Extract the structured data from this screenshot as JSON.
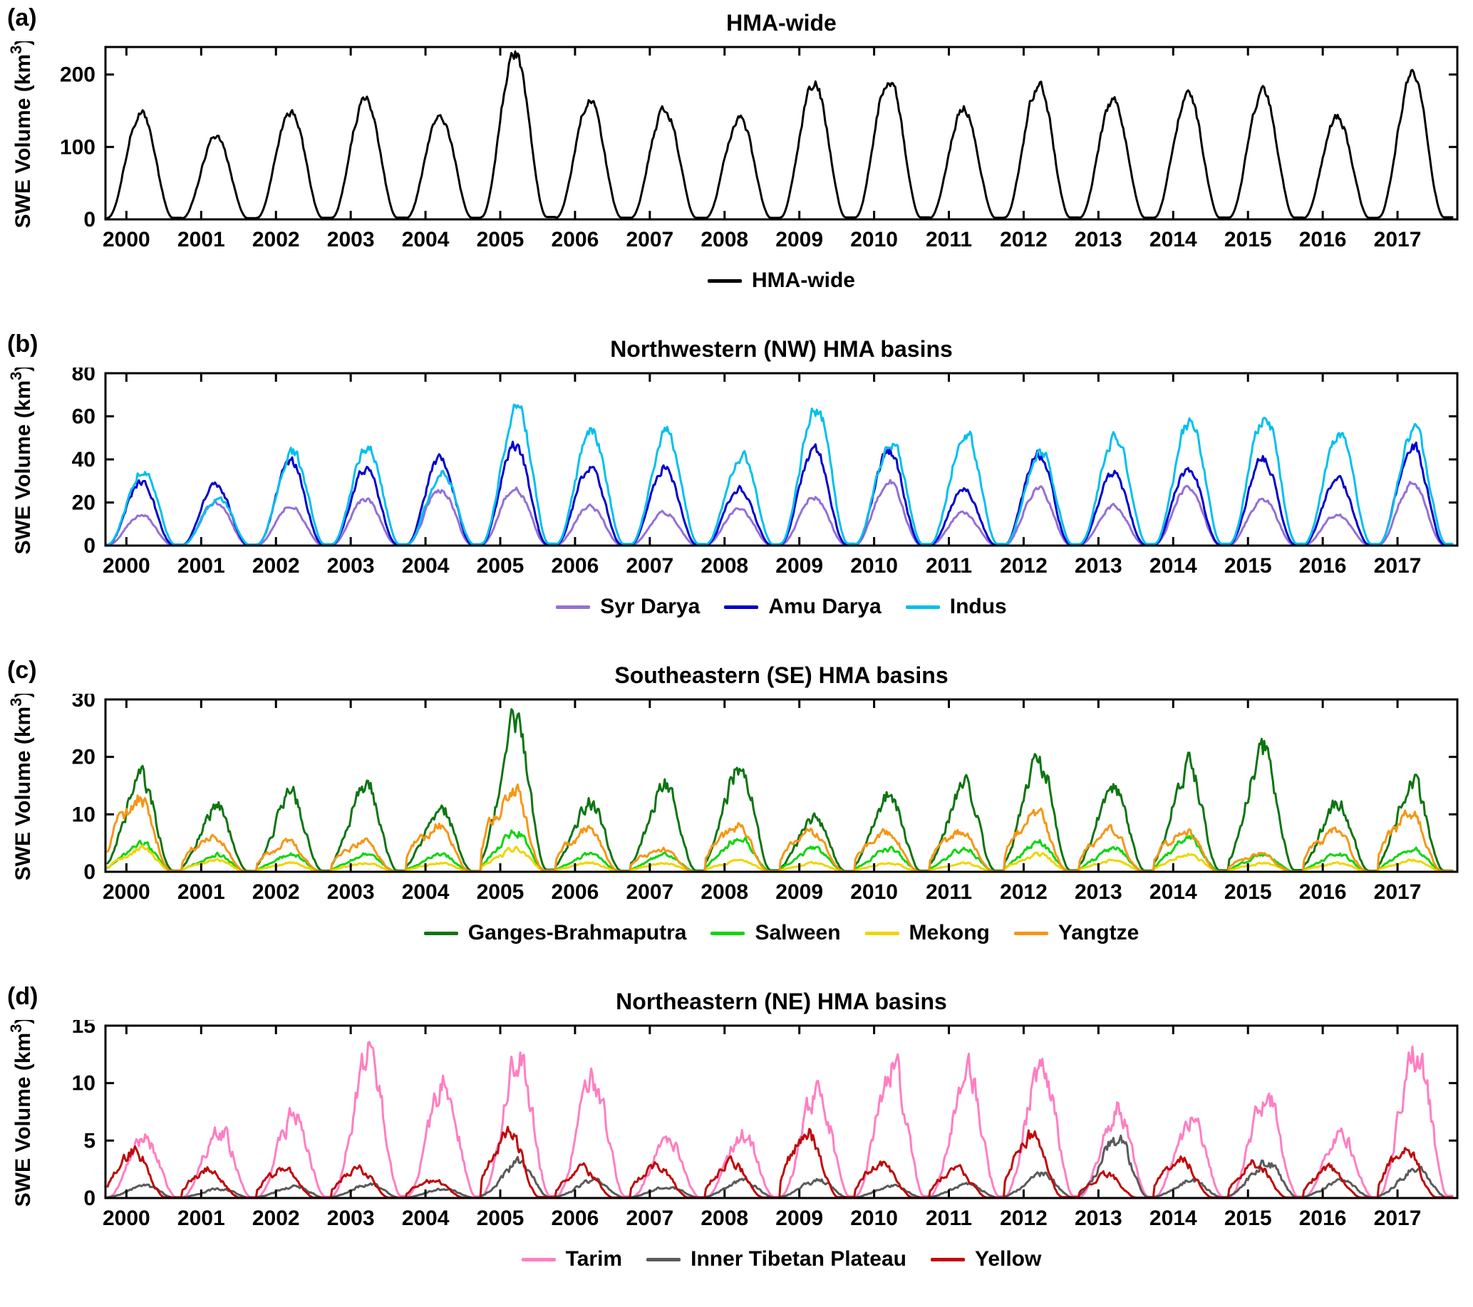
{
  "figure_name": "HMA SWE Volume time series figure",
  "chart_data": [
    {
      "panel": "a",
      "panel_label": "(a)",
      "type": "line",
      "title": "HMA-wide",
      "ylabel": "SWE Volume (km³)",
      "ylim": [
        0,
        238
      ],
      "yticks": [
        0,
        100,
        200
      ],
      "xlim": [
        1999.72,
        2017.8
      ],
      "xticks": [
        2000,
        2001,
        2002,
        2003,
        2004,
        2005,
        2006,
        2007,
        2008,
        2009,
        2010,
        2011,
        2012,
        2013,
        2014,
        2015,
        2016,
        2017
      ],
      "legend_position": "bottom",
      "grid": false,
      "series": [
        {
          "name": "HMA-wide",
          "color": "#000000",
          "peak_phase": 0.45,
          "autumn_bump": 0,
          "annual_peaks": [
            145,
            112,
            148,
            165,
            142,
            225,
            160,
            150,
            138,
            185,
            192,
            152,
            182,
            160,
            170,
            172,
            138,
            196
          ]
        }
      ]
    },
    {
      "panel": "b",
      "panel_label": "(b)",
      "type": "line",
      "title": "Northwestern (NW) HMA basins",
      "ylabel": "SWE Volume (km³)",
      "ylim": [
        0,
        80
      ],
      "yticks": [
        0,
        20,
        40,
        60,
        80
      ],
      "xlim": [
        1999.72,
        2017.8
      ],
      "xticks": [
        2000,
        2001,
        2002,
        2003,
        2004,
        2005,
        2006,
        2007,
        2008,
        2009,
        2010,
        2011,
        2012,
        2013,
        2014,
        2015,
        2016,
        2017
      ],
      "legend_position": "bottom",
      "grid": false,
      "series": [
        {
          "name": "Syr Darya",
          "color": "#9570D8",
          "peak_phase": 0.45,
          "autumn_bump": 0,
          "annual_peaks": [
            14,
            20,
            18,
            21,
            26,
            27,
            18,
            15,
            17,
            22,
            29,
            15,
            26,
            18,
            27,
            21,
            14,
            28
          ]
        },
        {
          "name": "Amu Darya",
          "color": "#0000CD",
          "peak_phase": 0.45,
          "autumn_bump": 0,
          "annual_peaks": [
            29,
            28,
            38,
            35,
            40,
            46,
            36,
            36,
            26,
            44,
            43,
            26,
            42,
            33,
            35,
            40,
            30,
            46
          ]
        },
        {
          "name": "Indus",
          "color": "#00BFEF",
          "peak_phase": 0.48,
          "autumn_bump": 0,
          "annual_peaks": [
            35,
            22,
            42,
            45,
            33,
            63,
            52,
            52,
            41,
            63,
            48,
            52,
            43,
            50,
            57,
            59,
            51,
            52
          ]
        }
      ]
    },
    {
      "panel": "c",
      "panel_label": "(c)",
      "type": "line",
      "title": "Southeastern (SE) HMA basins",
      "ylabel": "SWE Volume (km³)",
      "ylim": [
        0,
        30
      ],
      "yticks": [
        0,
        10,
        20,
        30
      ],
      "xlim": [
        1999.72,
        2017.8
      ],
      "xticks": [
        2000,
        2001,
        2002,
        2003,
        2004,
        2005,
        2006,
        2007,
        2008,
        2009,
        2010,
        2011,
        2012,
        2013,
        2014,
        2015,
        2016,
        2017
      ],
      "legend_position": "bottom",
      "grid": false,
      "series": [
        {
          "name": "Ganges-Brahmaputra",
          "color": "#0D7512",
          "peak_phase": 0.45,
          "autumn_bump": 0.15,
          "annual_peaks": [
            16,
            11,
            13,
            15,
            11,
            25,
            12,
            15,
            18,
            9,
            13,
            15,
            19,
            15,
            18,
            21,
            12,
            15
          ]
        },
        {
          "name": "Salween",
          "color": "#0FD60F",
          "peak_phase": 0.45,
          "autumn_bump": 0.25,
          "annual_peaks": [
            5,
            3,
            3,
            3,
            3,
            7,
            3,
            3,
            6,
            4,
            4,
            4,
            5,
            4,
            6,
            3,
            3,
            4
          ]
        },
        {
          "name": "Mekong",
          "color": "#F0D500",
          "peak_phase": 0.45,
          "autumn_bump": 0.35,
          "annual_peaks": [
            4,
            2,
            1.5,
            1.5,
            1.5,
            4,
            1.5,
            1.5,
            2,
            1.5,
            1.5,
            1.5,
            3,
            2,
            3,
            1.5,
            1.5,
            2
          ]
        },
        {
          "name": "Yangtze",
          "color": "#F59716",
          "peak_phase": 0.42,
          "autumn_bump": 0.55,
          "annual_peaks": [
            13,
            6,
            5,
            5,
            8,
            14,
            7,
            4,
            8,
            7,
            7,
            7,
            10,
            7,
            7,
            3,
            7,
            10
          ]
        }
      ]
    },
    {
      "panel": "d",
      "panel_label": "(d)",
      "type": "line",
      "title": "Northeastern (NE) HMA basins",
      "ylabel": "SWE Volume (km³)",
      "ylim": [
        0,
        15
      ],
      "yticks": [
        0,
        5,
        10,
        15
      ],
      "xlim": [
        1999.72,
        2017.8
      ],
      "xticks": [
        2000,
        2001,
        2002,
        2003,
        2004,
        2005,
        2006,
        2007,
        2008,
        2009,
        2010,
        2011,
        2012,
        2013,
        2014,
        2015,
        2016,
        2017
      ],
      "legend_position": "bottom",
      "grid": false,
      "series": [
        {
          "name": "Tarim",
          "color": "#FF7EC2",
          "peak_phase": 0.5,
          "autumn_bump": 0,
          "annual_peaks": [
            5,
            5.8,
            7,
            12,
            9.5,
            11.5,
            9.8,
            4.8,
            5.5,
            9,
            11.5,
            10.5,
            11,
            7.5,
            6.5,
            8.5,
            5.5,
            12.8
          ]
        },
        {
          "name": "Inner Tibetan Plateau",
          "color": "#5A5A5A",
          "peak_phase": 0.5,
          "autumn_bump": 0.1,
          "annual_peaks": [
            1,
            0.8,
            1,
            1.2,
            0.8,
            3,
            1.5,
            1,
            1.5,
            1.5,
            1,
            1.2,
            2,
            5,
            1.5,
            3,
            1.5,
            2.5
          ]
        },
        {
          "name": "Yellow",
          "color": "#C00808",
          "peak_phase": 0.35,
          "autumn_bump": 0.5,
          "annual_peaks": [
            4,
            2.5,
            2.5,
            2.5,
            1.5,
            5.8,
            2.5,
            2.8,
            3,
            5.5,
            3,
            2.5,
            5.3,
            2,
            3.5,
            3,
            2.5,
            4.3
          ]
        }
      ]
    }
  ]
}
